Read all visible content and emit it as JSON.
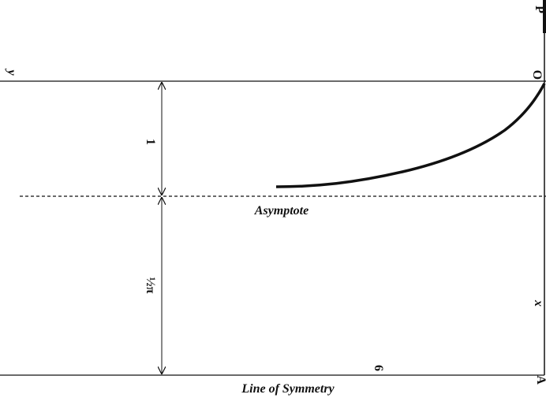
{
  "labels": {
    "y": "y",
    "one": "1",
    "half_pi": "½π",
    "asymptote": "Asymptote",
    "x": "x",
    "p": "P",
    "o": "O",
    "a": "A",
    "sigma": "6",
    "line_of_symmetry": "Line of Symmetry"
  }
}
